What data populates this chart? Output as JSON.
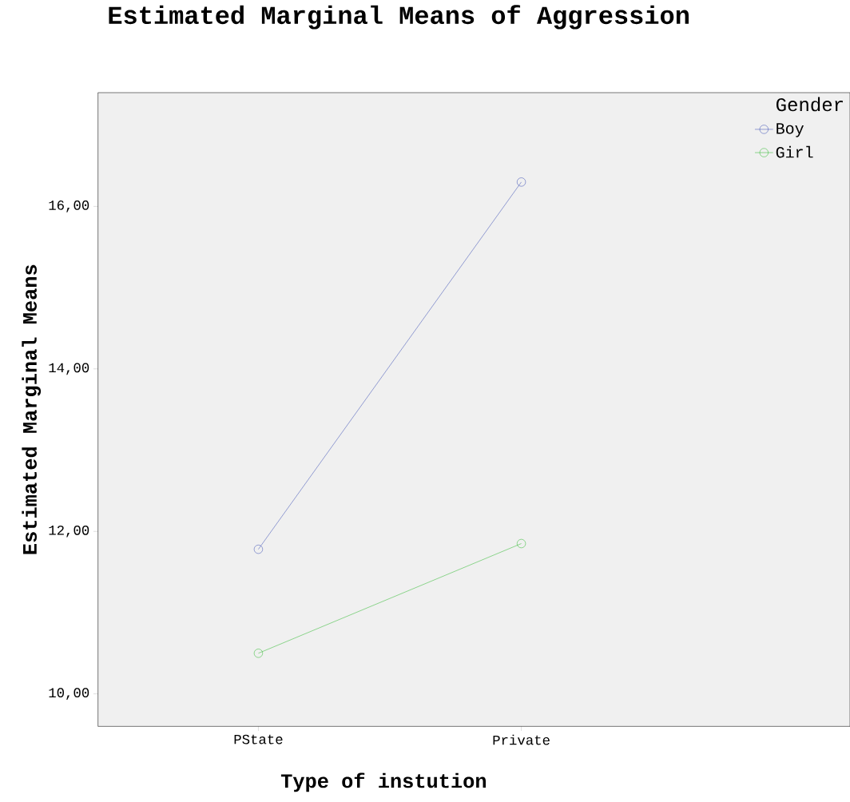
{
  "chart_data": {
    "type": "line",
    "title": "Estimated Marginal Means of Aggression",
    "xlabel": "Type of instution",
    "ylabel": "Estimated Marginal Means",
    "legend_title": "Gender",
    "categories": [
      "PState",
      "Private"
    ],
    "series": [
      {
        "name": "Boy",
        "color": "#3f51b5",
        "values": [
          11.78,
          16.3
        ]
      },
      {
        "name": "Girl",
        "color": "#33bb33",
        "values": [
          10.5,
          11.85
        ]
      }
    ],
    "ylim": [
      9.6,
      17.4
    ],
    "yticks": [
      {
        "value": 10,
        "label": "10,00"
      },
      {
        "value": 12,
        "label": "12,00"
      },
      {
        "value": 14,
        "label": "14,00"
      },
      {
        "value": 16,
        "label": "16,00"
      }
    ],
    "legend": "top right",
    "marker": "circle",
    "grid": false
  }
}
